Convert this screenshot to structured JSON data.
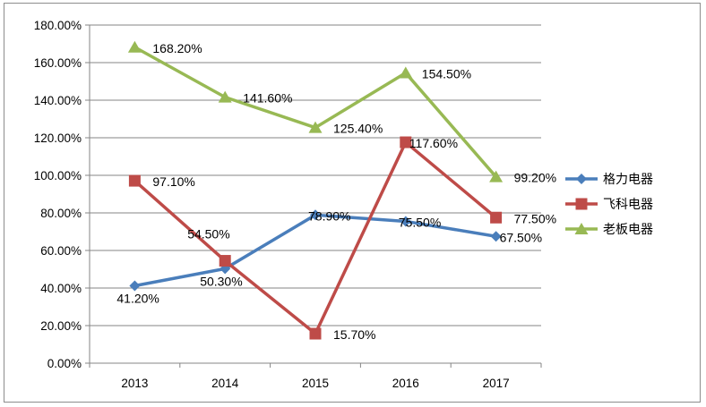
{
  "chart_data": {
    "type": "line",
    "title": "",
    "xlabel": "",
    "ylabel": "",
    "categories": [
      "2013",
      "2014",
      "2015",
      "2016",
      "2017"
    ],
    "ylim": [
      0,
      180
    ],
    "y_ticks": [
      "0.00%",
      "20.00%",
      "40.00%",
      "60.00%",
      "80.00%",
      "100.00%",
      "120.00%",
      "140.00%",
      "160.00%",
      "180.00%"
    ],
    "grid": "horizontal",
    "legend_position": "right",
    "series": [
      {
        "name": "格力电器",
        "color": "#4a7ebb",
        "marker": "diamond",
        "values": [
          41.2,
          50.3,
          78.9,
          75.5,
          67.5
        ],
        "labels": [
          "41.20%",
          "50.30%",
          "78.90%",
          "75.50%",
          "67.50%"
        ]
      },
      {
        "name": "飞科电器",
        "color": "#be4b48",
        "marker": "square",
        "values": [
          97.1,
          54.5,
          15.7,
          117.6,
          77.5
        ],
        "labels": [
          "97.10%",
          "54.50%",
          "15.70%",
          "117.60%",
          "77.50%"
        ]
      },
      {
        "name": "老板电器",
        "color": "#98b954",
        "marker": "triangle",
        "values": [
          168.2,
          141.6,
          125.4,
          154.5,
          99.2
        ],
        "labels": [
          "168.20%",
          "141.60%",
          "125.40%",
          "154.50%",
          "99.20%"
        ]
      }
    ]
  }
}
